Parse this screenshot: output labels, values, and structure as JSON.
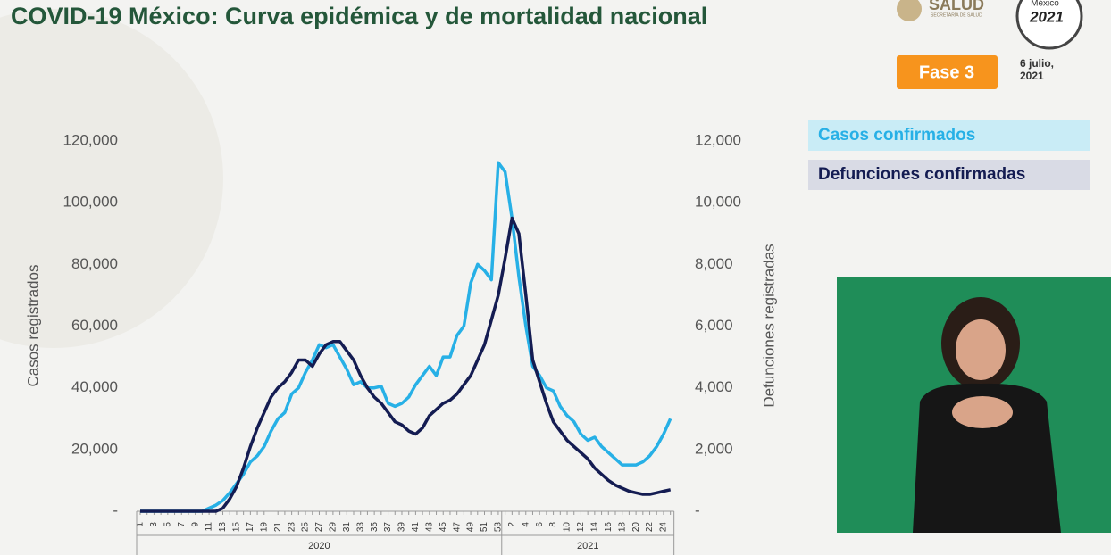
{
  "header": {
    "title": "COVID-19 México: Curva epidémica y de mortalidad nacional",
    "logo": "SALUD",
    "logo_subtitle": "SECRETARÍA DE SALUD",
    "badge_top": "México",
    "badge_year": "2021",
    "phase": "Fase 3",
    "date": "6 julio, 2021"
  },
  "chart_data": {
    "type": "line",
    "ylabel": "Casos registrados",
    "y2label": "Defunciones registradas",
    "categories": [
      "1",
      null,
      "3",
      null,
      "5",
      null,
      "7",
      null,
      "9",
      null,
      "11",
      null,
      "13",
      null,
      "15",
      null,
      "17",
      null,
      "19",
      null,
      "21",
      null,
      "23",
      null,
      "25",
      null,
      "27",
      null,
      "29",
      null,
      "31",
      null,
      "33",
      null,
      "35",
      null,
      "37",
      null,
      "39",
      null,
      "41",
      null,
      "43",
      null,
      "45",
      null,
      "47",
      null,
      "49",
      null,
      "51",
      null,
      "53",
      null,
      "2",
      null,
      "4",
      null,
      "6",
      null,
      "8",
      null,
      "10",
      null,
      "12",
      null,
      "14",
      null,
      "16",
      null,
      "18",
      null,
      "20",
      null,
      "22",
      null,
      "24",
      null
    ],
    "groups": [
      {
        "name": "2020",
        "count": 53
      },
      {
        "name": "2021",
        "count": 25
      }
    ],
    "series": [
      {
        "name": "Casos confirmados",
        "color": "#27b0e6",
        "axis": "y",
        "values": [
          0,
          0,
          0,
          0,
          0,
          0,
          0,
          0,
          0,
          0,
          1000,
          2000,
          3500,
          6000,
          9000,
          12000,
          16000,
          18000,
          21000,
          26000,
          30000,
          32000,
          38000,
          40000,
          45000,
          49000,
          54000,
          53000,
          54000,
          50000,
          46000,
          41000,
          42000,
          40000,
          40000,
          40500,
          35000,
          34000,
          35000,
          37000,
          41000,
          44000,
          47000,
          44000,
          50000,
          50000,
          57000,
          60000,
          74000,
          80000,
          78000,
          75000,
          113000,
          110000,
          95000,
          76000,
          60000,
          47000,
          44000,
          40000,
          39000,
          34000,
          31000,
          29000,
          25000,
          23000,
          24000,
          21000,
          19000,
          17000,
          15000,
          15000,
          15000,
          16000,
          18000,
          21000,
          25000,
          30000
        ]
      },
      {
        "name": "Defunciones confirmadas",
        "color": "#141c52",
        "axis": "y2",
        "values": [
          0,
          0,
          0,
          0,
          0,
          0,
          0,
          0,
          0,
          0,
          0,
          0,
          100,
          400,
          800,
          1400,
          2100,
          2700,
          3200,
          3700,
          4000,
          4200,
          4500,
          4900,
          4900,
          4700,
          5100,
          5400,
          5500,
          5500,
          5200,
          4900,
          4400,
          4000,
          3700,
          3500,
          3200,
          2900,
          2800,
          2600,
          2500,
          2700,
          3100,
          3300,
          3500,
          3600,
          3800,
          4100,
          4400,
          4900,
          5400,
          6200,
          7000,
          8200,
          9500,
          9000,
          7000,
          4900,
          4200,
          3500,
          2900,
          2600,
          2300,
          2100,
          1900,
          1700,
          1400,
          1200,
          1000,
          850,
          750,
          650,
          600,
          550,
          550,
          600,
          650,
          700
        ]
      }
    ],
    "ylim": [
      0,
      120000
    ],
    "yticks": [
      {
        "value": 0,
        "label": "-"
      },
      {
        "value": 20000,
        "label": "20,000"
      },
      {
        "value": 40000,
        "label": "40,000"
      },
      {
        "value": 60000,
        "label": "60,000"
      },
      {
        "value": 80000,
        "label": "80,000"
      },
      {
        "value": 100000,
        "label": "100,000"
      },
      {
        "value": 120000,
        "label": "120,000"
      }
    ],
    "y2lim": [
      0,
      12000
    ],
    "y2ticks": [
      {
        "value": 0,
        "label": "-"
      },
      {
        "value": 2000,
        "label": "2,000"
      },
      {
        "value": 4000,
        "label": "4,000"
      },
      {
        "value": 6000,
        "label": "6,000"
      },
      {
        "value": 8000,
        "label": "8,000"
      },
      {
        "value": 10000,
        "label": "10,000"
      },
      {
        "value": 12000,
        "label": "12,000"
      }
    ],
    "grid": false
  }
}
